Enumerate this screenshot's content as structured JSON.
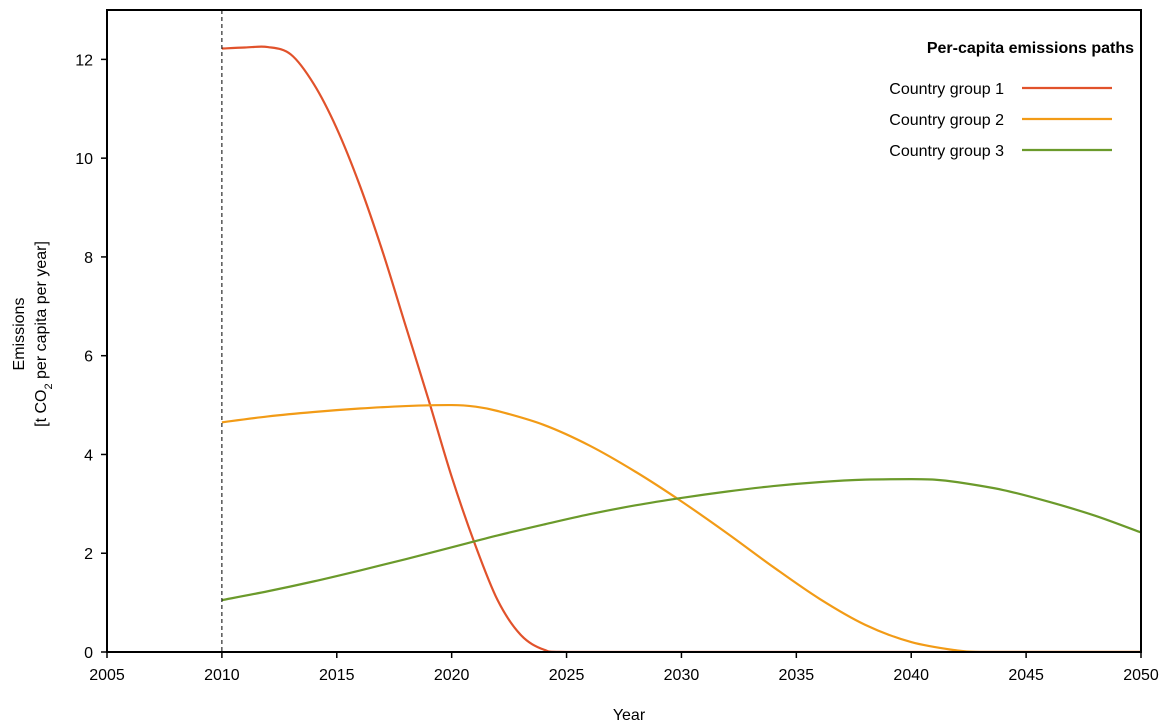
{
  "chart_data": {
    "type": "line",
    "xlabel": "Year",
    "ylabel_line1": "Emissions",
    "ylabel_line2_prefix": "[t CO",
    "ylabel_line2_sub": "2",
    "ylabel_line2_suffix": " per capita per year]",
    "xlim": [
      2005,
      2050
    ],
    "ylim": [
      0,
      13
    ],
    "xticks": [
      "2005",
      "2010",
      "2015",
      "2020",
      "2025",
      "2030",
      "2035",
      "2040",
      "2045",
      "2050"
    ],
    "yticks": [
      "0",
      "2",
      "4",
      "6",
      "8",
      "10",
      "12"
    ],
    "reference_line_x": 2010,
    "legend_title": "Per-capita emissions paths",
    "legend_position": "top-right",
    "series": [
      {
        "name": "Country group 1",
        "color": "#e1522b",
        "x": [
          2010,
          2011,
          2012,
          2013,
          2014,
          2015,
          2016,
          2017,
          2018,
          2019,
          2020,
          2021,
          2022,
          2023,
          2024,
          2025,
          2030,
          2035,
          2040,
          2045,
          2050
        ],
        "y": [
          12.22,
          12.24,
          12.25,
          12.1,
          11.5,
          10.6,
          9.45,
          8.1,
          6.6,
          5.1,
          3.55,
          2.2,
          1.05,
          0.35,
          0.05,
          0,
          0,
          0,
          0,
          0,
          0
        ]
      },
      {
        "name": "Country group 2",
        "color": "#f29b16",
        "x": [
          2010,
          2012,
          2014,
          2016,
          2018,
          2020,
          2021,
          2022,
          2024,
          2026,
          2028,
          2030,
          2032,
          2034,
          2036,
          2038,
          2040,
          2042,
          2043,
          2045,
          2050
        ],
        "y": [
          4.65,
          4.77,
          4.86,
          4.93,
          4.98,
          5.0,
          4.97,
          4.88,
          4.6,
          4.18,
          3.65,
          3.05,
          2.4,
          1.72,
          1.08,
          0.55,
          0.2,
          0.03,
          0,
          0,
          0
        ]
      },
      {
        "name": "Country group 3",
        "color": "#6b9a2b",
        "x": [
          2010,
          2012,
          2014,
          2016,
          2018,
          2020,
          2022,
          2024,
          2026,
          2028,
          2030,
          2032,
          2034,
          2036,
          2038,
          2040,
          2041,
          2042,
          2044,
          2046,
          2048,
          2050
        ],
        "y": [
          1.05,
          1.23,
          1.43,
          1.65,
          1.88,
          2.12,
          2.36,
          2.58,
          2.79,
          2.97,
          3.12,
          3.25,
          3.36,
          3.44,
          3.49,
          3.5,
          3.49,
          3.44,
          3.28,
          3.04,
          2.76,
          2.42
        ]
      }
    ]
  }
}
